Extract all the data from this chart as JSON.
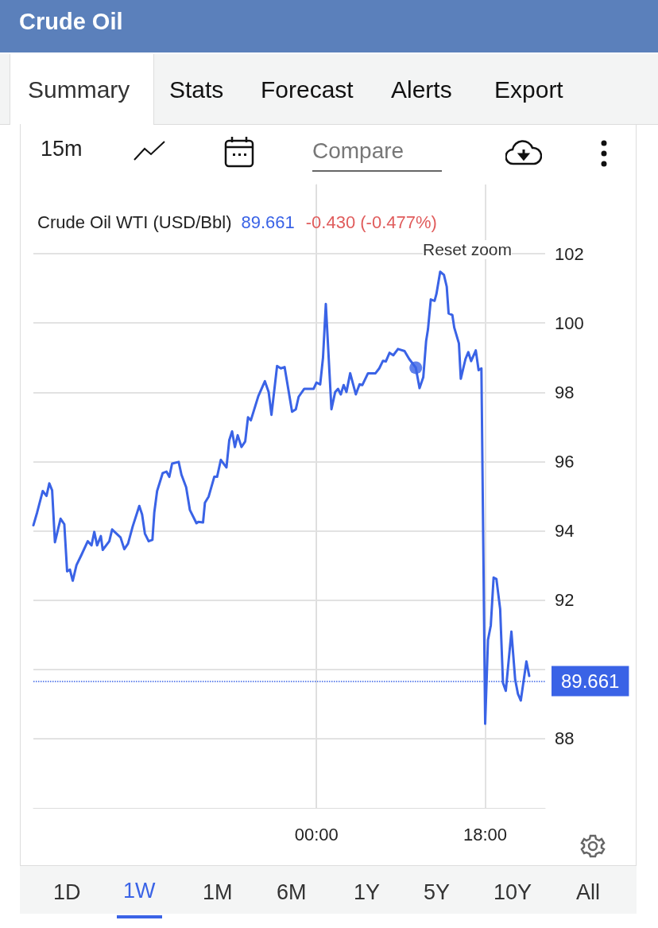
{
  "chart_data": {
    "type": "line",
    "title": "Crude Oil",
    "annotations": [
      "Summary",
      "Stats",
      "Forecast",
      "Alerts",
      "Export",
      "15m",
      "Compare",
      "Crude Oil WTI (USD/Bbl)",
      "89.661",
      "-0.430 (-0.477%)",
      "Reset zoom",
      "1D",
      "1W",
      "1M",
      "6M",
      "1Y",
      "5Y",
      "10Y",
      "All"
    ],
    "xlim": [
      -30.2,
      24.4
    ],
    "xticks": [
      {
        "value": 0,
        "label": "00:00"
      },
      {
        "value": 18,
        "label": "18:00"
      }
    ],
    "ylim": [
      86,
      104
    ],
    "yticks": [
      88,
      {
        "value": 90,
        "label": null
      },
      92,
      94,
      96,
      98,
      100,
      102
    ],
    "grid": true,
    "marker": "none",
    "line_style": "solid",
    "ref_lines": [
      {
        "axis": "y",
        "value": 89.661,
        "label": "89.661",
        "color": "#3a63e6",
        "line_style": "dotted"
      }
    ],
    "series": [
      {
        "color": "#3a63e6",
        "x": [
          -30.2,
          -29.8,
          -29.2,
          -28.8,
          -28.5,
          -28.2,
          -27.9,
          -27.3,
          -26.9,
          -26.6,
          -26.3,
          -26.0,
          -25.6,
          -25.1,
          -24.4,
          -24.0,
          -23.7,
          -23.4,
          -23.0,
          -22.8,
          -22.1,
          -21.8,
          -20.9,
          -20.5,
          -20.1,
          -19.6,
          -18.9,
          -18.6,
          -18.3,
          -17.9,
          -17.5,
          -17.3,
          -17.0,
          -16.4,
          -16.0,
          -15.7,
          -15.4,
          -14.7,
          -14.4,
          -13.9,
          -13.5,
          -12.8,
          -12.6,
          -12.1,
          -11.9,
          -11.5,
          -10.9,
          -10.6,
          -10.2,
          -9.6,
          -9.3,
          -9.0,
          -8.7,
          -8.4,
          -8.0,
          -7.6,
          -7.3,
          -7.0,
          -6.2,
          -5.5,
          -5.1,
          -4.8,
          -4.2,
          -3.8,
          -3.4,
          -2.6,
          -2.2,
          -1.9,
          -1.3,
          -0.3,
          0.0,
          0.4,
          0.7,
          1.0,
          1.6,
          2.0,
          2.3,
          2.6,
          2.9,
          3.2,
          3.6,
          4.2,
          4.6,
          4.9,
          5.5,
          6.3,
          6.7,
          7.1,
          7.4,
          7.8,
          8.2,
          8.7,
          9.4,
          9.9,
          10.6,
          11.0,
          11.4,
          11.7,
          11.9,
          12.2,
          12.6,
          12.8,
          13.2,
          13.6,
          13.9,
          14.1,
          14.5,
          14.7,
          15.2,
          15.4,
          15.9,
          16.2,
          16.5,
          17.0,
          17.3,
          17.6,
          18.0,
          18.3,
          18.6,
          18.9,
          19.2,
          19.6,
          19.9,
          20.2,
          20.8,
          21.2,
          21.5,
          21.8,
          22.4,
          22.7
        ],
        "values": [
          94.16,
          94.53,
          95.15,
          95.01,
          95.37,
          95.17,
          93.67,
          94.35,
          94.19,
          92.83,
          92.88,
          92.56,
          93.01,
          93.29,
          93.7,
          93.58,
          93.97,
          93.58,
          93.85,
          93.45,
          93.7,
          94.04,
          93.81,
          93.47,
          93.63,
          94.13,
          94.72,
          94.47,
          93.92,
          93.7,
          93.74,
          94.53,
          95.15,
          95.67,
          95.71,
          95.56,
          95.94,
          95.99,
          95.62,
          95.26,
          94.6,
          94.22,
          94.26,
          94.24,
          94.81,
          94.99,
          95.56,
          95.56,
          96.05,
          95.83,
          96.62,
          96.87,
          96.42,
          96.76,
          96.42,
          96.58,
          97.28,
          97.19,
          97.89,
          98.32,
          98.01,
          97.35,
          98.76,
          98.69,
          98.73,
          97.44,
          97.51,
          97.87,
          98.1,
          98.1,
          98.28,
          98.23,
          99.0,
          100.55,
          97.51,
          98.01,
          98.1,
          97.94,
          98.21,
          98.01,
          98.55,
          97.94,
          98.23,
          98.21,
          98.55,
          98.55,
          98.69,
          98.91,
          98.89,
          99.14,
          99.07,
          99.25,
          99.19,
          98.96,
          98.71,
          98.12,
          98.44,
          99.48,
          99.82,
          100.68,
          100.64,
          100.84,
          101.48,
          101.39,
          101.05,
          100.28,
          100.23,
          99.87,
          99.41,
          98.39,
          98.96,
          99.16,
          98.9,
          99.21,
          98.64,
          98.69,
          88.43,
          90.85,
          91.27,
          92.65,
          92.61,
          91.74,
          89.61,
          89.38,
          91.09,
          89.71,
          89.29,
          89.1,
          90.23,
          89.81
        ]
      },
      {
        "type": "scatter",
        "color": "#3a63e6",
        "marker": "circle",
        "x": [
          10.6
        ],
        "values": [
          98.71
        ]
      }
    ]
  }
}
